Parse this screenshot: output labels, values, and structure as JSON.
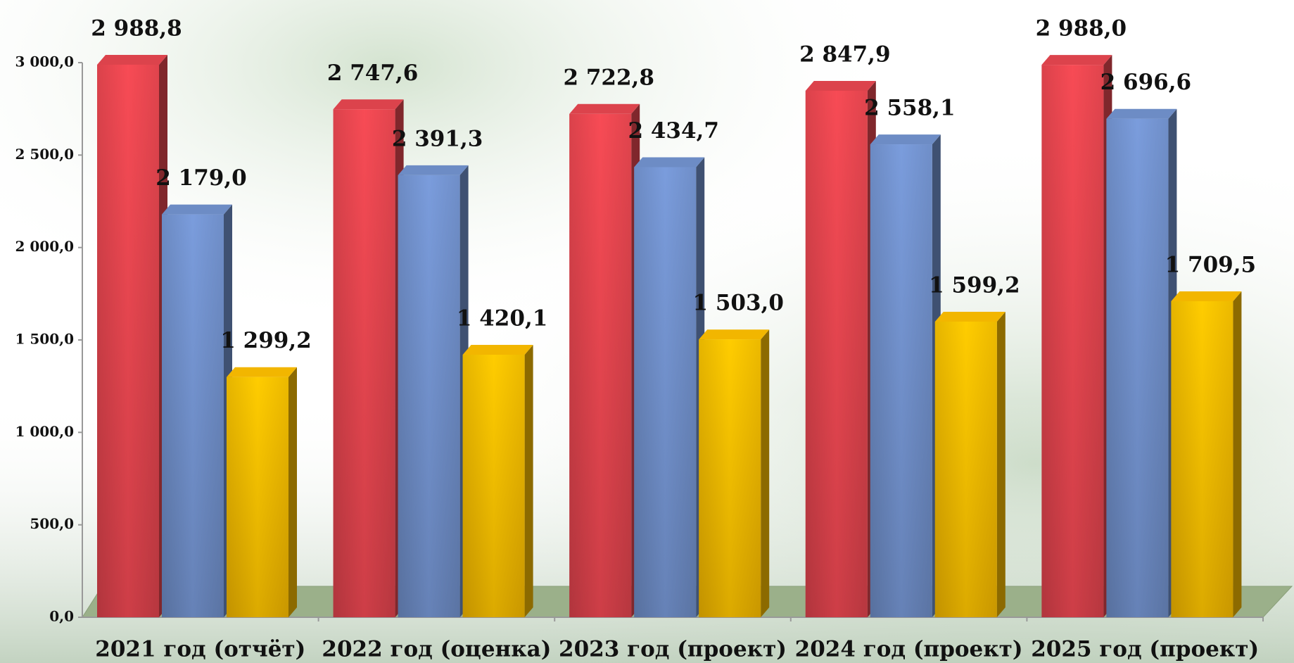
{
  "chart_data": {
    "type": "bar3d",
    "categories": [
      "2021 год (отчёт)",
      "2022 год (оценка)",
      "2023 год (проект)",
      "2024 год (проект)",
      "2025 год (проект)"
    ],
    "series": [
      {
        "color": "#e84650",
        "values": [
          2988.8,
          2747.6,
          2722.8,
          2847.9,
          2988.0
        ],
        "value_labels": [
          "2 988,8",
          "2 747,6",
          "2 722,8",
          "2 847,9",
          "2 988,0"
        ]
      },
      {
        "color": "#7393cf",
        "values": [
          2179.0,
          2391.3,
          2434.7,
          2558.1,
          2696.6
        ],
        "value_labels": [
          "2 179,0",
          "2 391,3",
          "2 434,7",
          "2 558,1",
          "2 696,6"
        ]
      },
      {
        "color": "#ffc000",
        "values": [
          1299.2,
          1420.1,
          1503.0,
          1599.2,
          1709.5
        ],
        "value_labels": [
          "1 299,2",
          "1 420,1",
          "1 503,0",
          "1 599,2",
          "1 709,5"
        ]
      }
    ],
    "ylim": [
      0,
      3000
    ],
    "yticks": [
      {
        "value": 0,
        "label": "0,0"
      },
      {
        "value": 500,
        "label": "500,0"
      },
      {
        "value": 1000,
        "label": "1 000,0"
      },
      {
        "value": 1500,
        "label": "1 500,0"
      },
      {
        "value": 2000,
        "label": "2 000,0"
      },
      {
        "value": 2500,
        "label": "2 500,0"
      },
      {
        "value": 3000,
        "label": "3 000,0"
      }
    ],
    "grid": false
  }
}
